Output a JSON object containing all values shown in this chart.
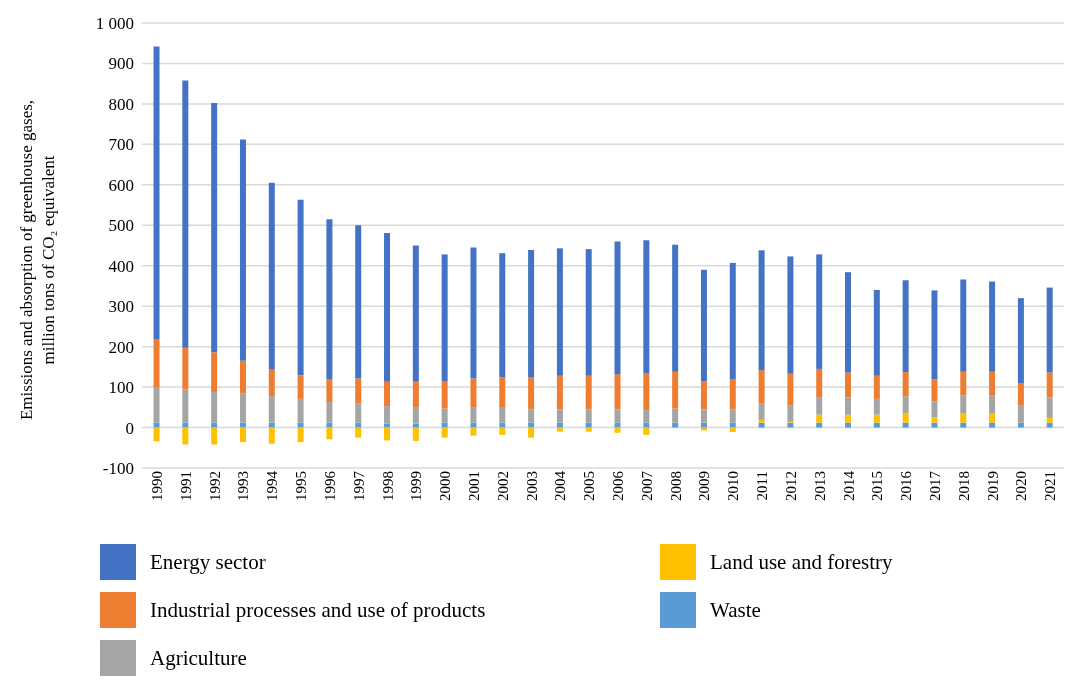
{
  "chart_data": {
    "type": "bar",
    "stacked": true,
    "ylabel": "Emissions and absorption of greenhouse gases,\nmillion tons of CO₂ equivalent",
    "categories": [
      "1990",
      "1991",
      "1992",
      "1993",
      "1994",
      "1995",
      "1996",
      "1997",
      "1998",
      "1999",
      "2000",
      "2001",
      "2002",
      "2003",
      "2004",
      "2005",
      "2006",
      "2007",
      "2008",
      "2009",
      "2010",
      "2011",
      "2012",
      "2013",
      "2014",
      "2015",
      "2016",
      "2017",
      "2018",
      "2019",
      "2020",
      "2021"
    ],
    "series": [
      {
        "name": "Waste",
        "color": "#5b9bd5",
        "values": [
          12,
          12,
          12,
          12,
          12,
          12,
          12,
          12,
          10,
          10,
          12,
          12,
          12,
          12,
          12,
          12,
          12,
          12,
          12,
          12,
          12,
          12,
          12,
          12,
          12,
          12,
          12,
          12,
          12,
          12,
          12,
          12
        ]
      },
      {
        "name": "Land use and forestry",
        "color": "#ffc000",
        "values": [
          -34,
          -42,
          -42,
          -36,
          -40,
          -36,
          -29,
          -25,
          -32,
          -33,
          -25,
          -20,
          -18,
          -25,
          -10,
          -10,
          -13,
          -18,
          0,
          -7,
          -11,
          7,
          2,
          20,
          20,
          20,
          24,
          13,
          24,
          24,
          0,
          12
        ]
      },
      {
        "name": "Agriculture",
        "color": "#a5a5a5",
        "values": [
          88,
          82,
          76,
          72,
          66,
          59,
          51,
          47,
          43,
          39,
          35,
          37,
          37,
          33,
          33,
          33,
          33,
          31,
          35,
          33,
          33,
          40,
          40,
          42,
          42,
          39,
          41,
          40,
          44,
          43,
          42,
          50
        ]
      },
      {
        "name": "Industrial processes and use of products",
        "color": "#ed7d31",
        "values": [
          119,
          103,
          98,
          81,
          67,
          58,
          57,
          62,
          60,
          64,
          68,
          72,
          75,
          79,
          83,
          83,
          87,
          92,
          91,
          70,
          75,
          83,
          79,
          71,
          62,
          57,
          60,
          54,
          58,
          59,
          56,
          62
        ]
      },
      {
        "name": "Energy sector",
        "color": "#4472c4",
        "values": [
          723,
          661,
          616,
          547,
          460,
          434,
          395,
          379,
          368,
          337,
          313,
          324,
          307,
          315,
          315,
          313,
          328,
          328,
          314,
          275,
          287,
          296,
          290,
          283,
          248,
          212,
          227,
          220,
          228,
          223,
          210,
          210
        ]
      }
    ],
    "ylim": [
      -100,
      1000
    ],
    "yticks": [
      -100,
      0,
      100,
      200,
      300,
      400,
      500,
      600,
      700,
      800,
      900,
      {
        "value": 1000,
        "label": "1 000"
      }
    ],
    "grid": "y",
    "legend": "bottom"
  }
}
